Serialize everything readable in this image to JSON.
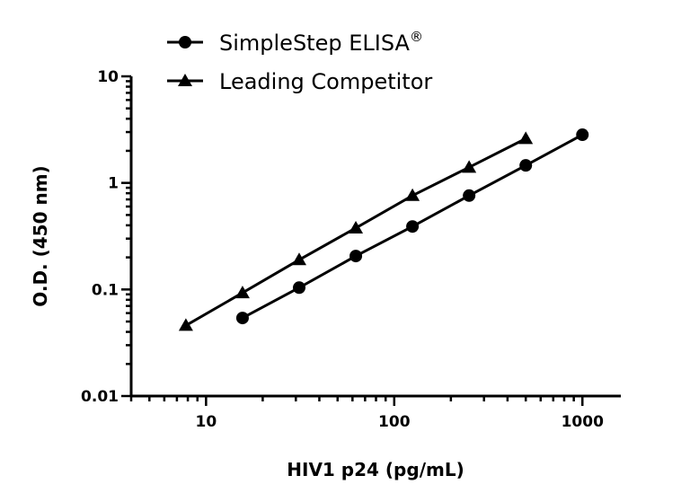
{
  "chart_data": {
    "type": "line",
    "title": "",
    "xlabel": "HIV1 p24 (pg/mL)",
    "ylabel": "O.D. (450 nm)",
    "xscale": "log",
    "yscale": "log",
    "xlim": [
      4,
      1600
    ],
    "ylim": [
      0.01,
      10
    ],
    "xticks": [
      {
        "value": 10,
        "label": "10"
      },
      {
        "value": 100,
        "label": "100"
      },
      {
        "value": 1000,
        "label": "1000"
      }
    ],
    "yticks": [
      {
        "value": 0.01,
        "label": "0.01"
      },
      {
        "value": 0.1,
        "label": "0.1"
      },
      {
        "value": 1,
        "label": "1"
      },
      {
        "value": 10,
        "label": "10"
      }
    ],
    "grid": false,
    "legend_position": "top",
    "series": [
      {
        "name": "SimpleStep ELISA",
        "name_suffix": "®",
        "marker": "circle",
        "color": "#000000",
        "x": [
          15.625,
          31.25,
          62.5,
          125,
          250,
          500,
          1000
        ],
        "y": [
          0.054,
          0.104,
          0.206,
          0.39,
          0.76,
          1.46,
          2.83
        ]
      },
      {
        "name": "Leading Competitor",
        "marker": "triangle",
        "color": "#000000",
        "x": [
          7.8125,
          15.625,
          31.25,
          62.5,
          125,
          250,
          500
        ],
        "y": [
          0.046,
          0.093,
          0.19,
          0.377,
          0.76,
          1.4,
          2.6
        ]
      }
    ]
  }
}
